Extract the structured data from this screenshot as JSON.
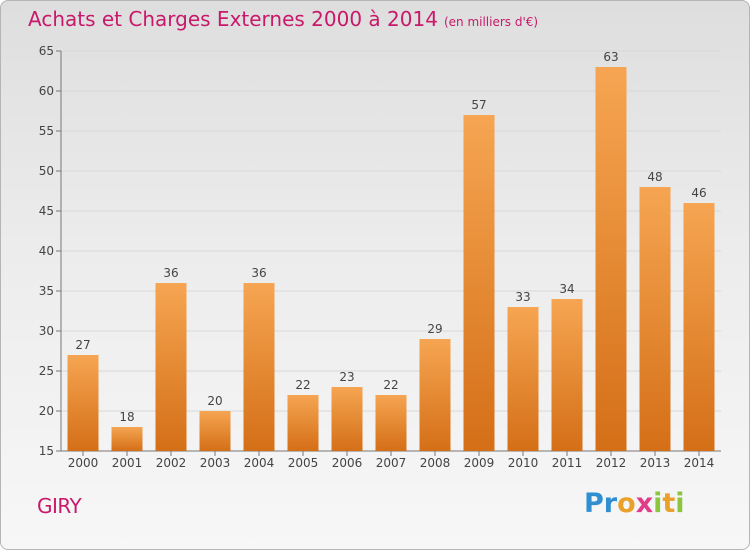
{
  "chart_data": {
    "type": "bar",
    "title": "Achats et Charges Externes 2000 à 2014",
    "subtitle": "(en milliers d'€)",
    "categories": [
      "2000",
      "2001",
      "2002",
      "2003",
      "2004",
      "2005",
      "2006",
      "2007",
      "2008",
      "2009",
      "2010",
      "2011",
      "2012",
      "2013",
      "2014"
    ],
    "values": [
      27,
      18,
      36,
      20,
      36,
      22,
      23,
      22,
      29,
      57,
      33,
      34,
      63,
      48,
      46
    ],
    "ylim": [
      15,
      65
    ],
    "yticks": [
      15,
      20,
      25,
      30,
      35,
      40,
      45,
      50,
      55,
      60,
      65
    ],
    "grid": true,
    "bar_color": "#f0923a"
  },
  "commune": "GIRY",
  "brand": {
    "letters": [
      "P",
      "r",
      "o",
      "x",
      "i",
      "t",
      "i"
    ],
    "colors": [
      "#2f8fd1",
      "#2f8fd1",
      "#e8a12b",
      "#e33a8a",
      "#8cc63f",
      "#e8a12b",
      "#8cc63f"
    ]
  }
}
